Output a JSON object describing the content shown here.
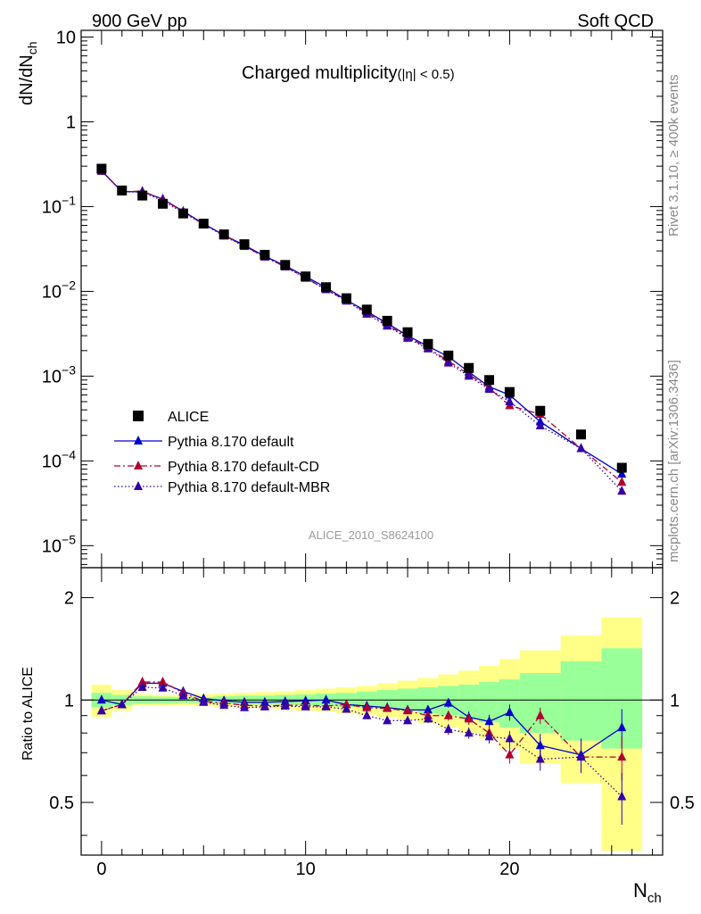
{
  "header": {
    "left": "900 GeV pp",
    "right": "Soft QCD"
  },
  "side_labels": {
    "rivet": "Rivet 3.1.10, ≥ 400k events",
    "mcplots": "mcplots.cern.ch [arXiv:1306.3436]"
  },
  "chart_data": [
    {
      "type": "scatter",
      "title": "Charged multiplicity",
      "title_suffix": "(|η| < 0.5)",
      "analysis_label": "ALICE_2010_S8624100",
      "ylabel": "dN/dN",
      "ylabel_sub": "ch",
      "xlabel": "N",
      "xlabel_sub": "ch",
      "yscale": "log",
      "ylim": [
        5.5e-06,
        12
      ],
      "xlim": [
        -1,
        27.5
      ],
      "y_ticks": [
        {
          "value": 10,
          "label": "10"
        },
        {
          "value": 1,
          "label": "1"
        },
        {
          "value": 0.1,
          "base": "10",
          "exp": "−1"
        },
        {
          "value": 0.01,
          "base": "10",
          "exp": "−2"
        },
        {
          "value": 0.001,
          "base": "10",
          "exp": "−3"
        },
        {
          "value": 0.0001,
          "base": "10",
          "exp": "−4"
        },
        {
          "value": 1e-05,
          "base": "10",
          "exp": "−5"
        }
      ],
      "legend_position": "bottom-left",
      "series": [
        {
          "name": "ALICE",
          "color": "#000000",
          "marker": "square",
          "x": [
            0,
            1,
            2,
            3,
            4,
            5,
            6,
            7,
            8,
            9,
            10,
            11,
            12,
            13,
            14,
            15,
            16,
            17,
            18,
            19,
            20,
            21.5,
            23.5,
            25.5
          ],
          "y": [
            0.28,
            0.155,
            0.135,
            0.108,
            0.083,
            0.063,
            0.047,
            0.036,
            0.027,
            0.0205,
            0.015,
            0.0112,
            0.0083,
            0.0061,
            0.0045,
            0.0033,
            0.0024,
            0.00175,
            0.00125,
            0.0009,
            0.00065,
            0.00039,
            0.000205,
            8.3e-05
          ]
        },
        {
          "name": "Pythia 8.170 default",
          "color": "#0000cc",
          "marker": "triangle",
          "line": "solid",
          "x": [
            0,
            1,
            2,
            3,
            4,
            5,
            6,
            7,
            8,
            9,
            10,
            11,
            12,
            13,
            14,
            15,
            16,
            17,
            18,
            19,
            20,
            21.5,
            23.5,
            25.5
          ],
          "y": [
            0.265,
            0.15,
            0.15,
            0.123,
            0.088,
            0.063,
            0.046,
            0.035,
            0.026,
            0.02,
            0.015,
            0.0111,
            0.0079,
            0.0058,
            0.0042,
            0.003,
            0.00225,
            0.0017,
            0.00112,
            0.00075,
            0.0006,
            0.00029,
            0.00014,
            7e-05
          ]
        },
        {
          "name": "Pythia 8.170 default-CD",
          "color": "#b00030",
          "marker": "triangle",
          "line": "dashdot",
          "x": [
            0,
            1,
            2,
            3,
            4,
            5,
            6,
            7,
            8,
            9,
            10,
            11,
            12,
            13,
            14,
            15,
            16,
            17,
            18,
            19,
            20,
            21.5,
            23.5,
            25.5
          ],
          "y": [
            0.262,
            0.15,
            0.152,
            0.122,
            0.087,
            0.062,
            0.046,
            0.034,
            0.0255,
            0.0195,
            0.0145,
            0.0105,
            0.0078,
            0.0056,
            0.004,
            0.0029,
            0.00215,
            0.0015,
            0.00105,
            0.00072,
            0.00045,
            0.000355,
            0.00014,
            5.6e-05
          ]
        },
        {
          "name": "Pythia 8.170 default-MBR",
          "color": "#3300aa",
          "marker": "triangle",
          "line": "dotted",
          "x": [
            0,
            1,
            2,
            3,
            4,
            5,
            6,
            7,
            8,
            9,
            10,
            11,
            12,
            13,
            14,
            15,
            16,
            17,
            18,
            19,
            20,
            21.5,
            23.5,
            25.5
          ],
          "y": [
            0.262,
            0.15,
            0.148,
            0.117,
            0.085,
            0.062,
            0.045,
            0.034,
            0.0255,
            0.0195,
            0.0143,
            0.0105,
            0.0077,
            0.0054,
            0.0039,
            0.0028,
            0.0021,
            0.00143,
            0.001,
            0.0007,
            0.0005,
            0.00026,
            0.00014,
            4.4e-05
          ]
        }
      ]
    },
    {
      "type": "scatter",
      "ylabel": "Ratio to ALICE",
      "yscale": "log",
      "ylim": [
        0.35,
        2.45
      ],
      "y_ticks": [
        {
          "value": 2,
          "label": "2"
        },
        {
          "value": 1,
          "label": "1"
        },
        {
          "value": 0.5,
          "label": "0.5"
        }
      ],
      "x_ticks": [
        {
          "value": 0,
          "label": "0"
        },
        {
          "value": 10,
          "label": "10"
        },
        {
          "value": 20,
          "label": "20"
        }
      ],
      "reference_line": 1,
      "bands": {
        "bin_edges": [
          -0.5,
          0.5,
          1.5,
          2.5,
          3.5,
          4.5,
          5.5,
          6.5,
          7.5,
          8.5,
          9.5,
          10.5,
          11.5,
          12.5,
          13.5,
          14.5,
          15.5,
          16.5,
          17.5,
          18.5,
          19.5,
          20.5,
          22.5,
          24.5,
          26.5
        ],
        "inner": {
          "color": "#99ff99",
          "lo": [
            0.95,
            0.965,
            0.975,
            0.978,
            0.98,
            0.98,
            0.975,
            0.97,
            0.97,
            0.97,
            0.965,
            0.96,
            0.955,
            0.95,
            0.94,
            0.93,
            0.915,
            0.9,
            0.88,
            0.86,
            0.83,
            0.8,
            0.76,
            0.72
          ],
          "hi": [
            1.05,
            1.035,
            1.025,
            1.022,
            1.02,
            1.02,
            1.025,
            1.03,
            1.03,
            1.035,
            1.04,
            1.045,
            1.05,
            1.06,
            1.07,
            1.08,
            1.09,
            1.1,
            1.11,
            1.13,
            1.15,
            1.2,
            1.3,
            1.42
          ]
        },
        "outer": {
          "color": "#ffff88",
          "lo": [
            0.89,
            0.93,
            0.96,
            0.965,
            0.965,
            0.96,
            0.955,
            0.95,
            0.945,
            0.94,
            0.93,
            0.925,
            0.915,
            0.905,
            0.89,
            0.875,
            0.855,
            0.83,
            0.8,
            0.77,
            0.72,
            0.65,
            0.57,
            0.36
          ],
          "hi": [
            1.11,
            1.07,
            1.04,
            1.035,
            1.035,
            1.04,
            1.045,
            1.05,
            1.055,
            1.06,
            1.07,
            1.08,
            1.09,
            1.1,
            1.12,
            1.14,
            1.16,
            1.19,
            1.22,
            1.26,
            1.32,
            1.4,
            1.55,
            1.75
          ]
        }
      },
      "series": [
        {
          "name": "Pythia 8.170 default",
          "color": "#0000cc",
          "line": "solid",
          "x": [
            0,
            1,
            2,
            3,
            4,
            5,
            6,
            7,
            8,
            9,
            10,
            11,
            12,
            13,
            14,
            15,
            16,
            17,
            18,
            19,
            20,
            21.5,
            23.5,
            25.5
          ],
          "y": [
            1.0,
            0.97,
            1.12,
            1.12,
            1.06,
            1.01,
            0.995,
            0.985,
            0.985,
            0.99,
            0.995,
            1.0,
            0.97,
            0.96,
            0.95,
            0.935,
            0.935,
            0.98,
            0.89,
            0.865,
            0.92,
            0.735,
            0.69,
            0.83
          ],
          "err": [
            0.01,
            0.01,
            0.01,
            0.01,
            0.01,
            0.01,
            0.01,
            0.01,
            0.01,
            0.01,
            0.01,
            0.01,
            0.01,
            0.015,
            0.015,
            0.02,
            0.025,
            0.03,
            0.035,
            0.04,
            0.05,
            0.06,
            0.08,
            0.11
          ]
        },
        {
          "name": "Pythia 8.170 default-CD",
          "color": "#b00030",
          "line": "dashdot",
          "x": [
            0,
            1,
            2,
            3,
            4,
            5,
            6,
            7,
            8,
            9,
            10,
            11,
            12,
            13,
            14,
            15,
            16,
            17,
            18,
            19,
            20,
            21.5,
            23.5,
            25.5
          ],
          "y": [
            0.93,
            0.97,
            1.13,
            1.13,
            1.05,
            0.99,
            0.98,
            0.965,
            0.96,
            0.965,
            0.965,
            0.96,
            0.97,
            0.95,
            0.945,
            0.93,
            0.9,
            0.9,
            0.88,
            0.8,
            0.69,
            0.9,
            0.68,
            0.68
          ],
          "err": [
            0.01,
            0.01,
            0.01,
            0.01,
            0.01,
            0.01,
            0.01,
            0.01,
            0.01,
            0.01,
            0.01,
            0.01,
            0.01,
            0.015,
            0.015,
            0.02,
            0.025,
            0.03,
            0.035,
            0.04,
            0.04,
            0.05,
            0.07,
            0.1
          ]
        },
        {
          "name": "Pythia 8.170 default-MBR",
          "color": "#3300aa",
          "line": "dotted",
          "x": [
            0,
            1,
            2,
            3,
            4,
            5,
            6,
            7,
            8,
            9,
            10,
            11,
            12,
            13,
            14,
            15,
            16,
            17,
            18,
            19,
            20,
            21.5,
            23.5,
            25.5
          ],
          "y": [
            0.93,
            0.97,
            1.09,
            1.085,
            1.03,
            0.985,
            0.965,
            0.95,
            0.955,
            0.96,
            0.955,
            0.955,
            0.94,
            0.9,
            0.87,
            0.87,
            0.88,
            0.82,
            0.8,
            0.78,
            0.77,
            0.67,
            0.68,
            0.52
          ],
          "err": [
            0.01,
            0.01,
            0.01,
            0.01,
            0.01,
            0.01,
            0.01,
            0.01,
            0.01,
            0.01,
            0.01,
            0.01,
            0.01,
            0.015,
            0.015,
            0.02,
            0.025,
            0.03,
            0.03,
            0.035,
            0.04,
            0.05,
            0.07,
            0.09
          ]
        }
      ]
    }
  ]
}
